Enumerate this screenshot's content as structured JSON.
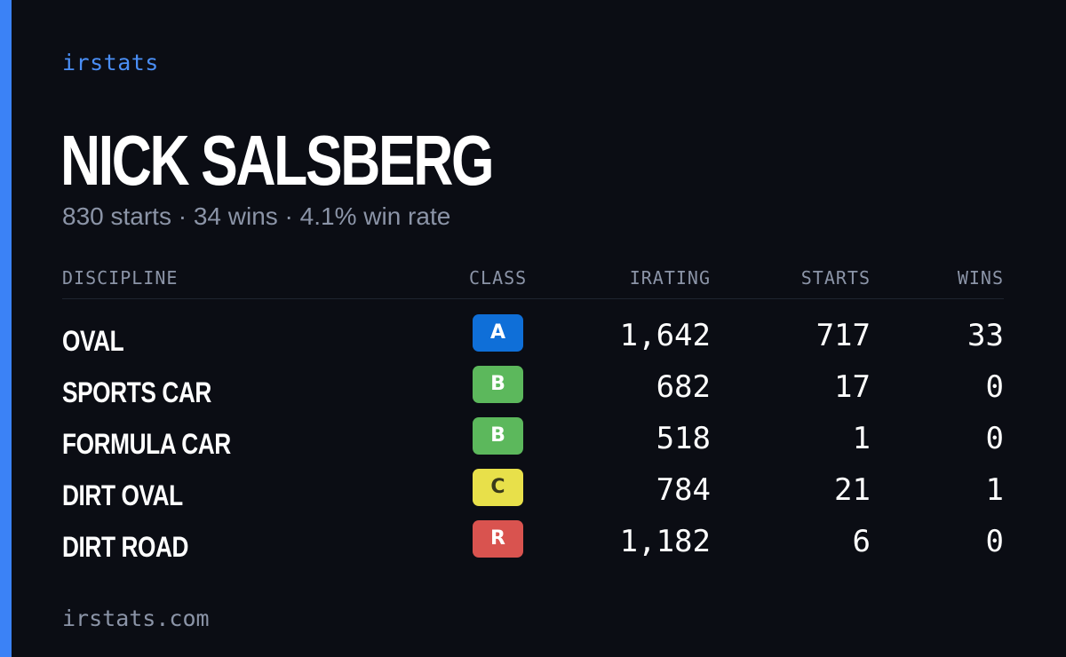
{
  "brand": "irstats",
  "driver": {
    "name": "NICK SALSBERG",
    "summary": "830 starts · 34 wins · 4.1% win rate"
  },
  "table": {
    "headers": {
      "discipline": "DISCIPLINE",
      "class": "CLASS",
      "irating": "IRATING",
      "starts": "STARTS",
      "wins": "WINS"
    },
    "rows": [
      {
        "discipline": "OVAL",
        "class": "A",
        "class_color": "#0f6fd8",
        "class_text_color": "#ffffff",
        "irating": "1,642",
        "starts": "717",
        "wins": "33"
      },
      {
        "discipline": "SPORTS CAR",
        "class": "B",
        "class_color": "#5cb85c",
        "class_text_color": "#ffffff",
        "irating": "682",
        "starts": "17",
        "wins": "0"
      },
      {
        "discipline": "FORMULA CAR",
        "class": "B",
        "class_color": "#5cb85c",
        "class_text_color": "#ffffff",
        "irating": "518",
        "starts": "1",
        "wins": "0"
      },
      {
        "discipline": "DIRT OVAL",
        "class": "C",
        "class_color": "#e8e04a",
        "class_text_color": "#3a3a1a",
        "irating": "784",
        "starts": "21",
        "wins": "1"
      },
      {
        "discipline": "DIRT ROAD",
        "class": "R",
        "class_color": "#d9534f",
        "class_text_color": "#ffffff",
        "irating": "1,182",
        "starts": "6",
        "wins": "0"
      }
    ]
  },
  "footer": "irstats.com",
  "colors": {
    "accent": "#3b82f6",
    "background": "#0b0d14",
    "muted": "#8b94a7"
  }
}
